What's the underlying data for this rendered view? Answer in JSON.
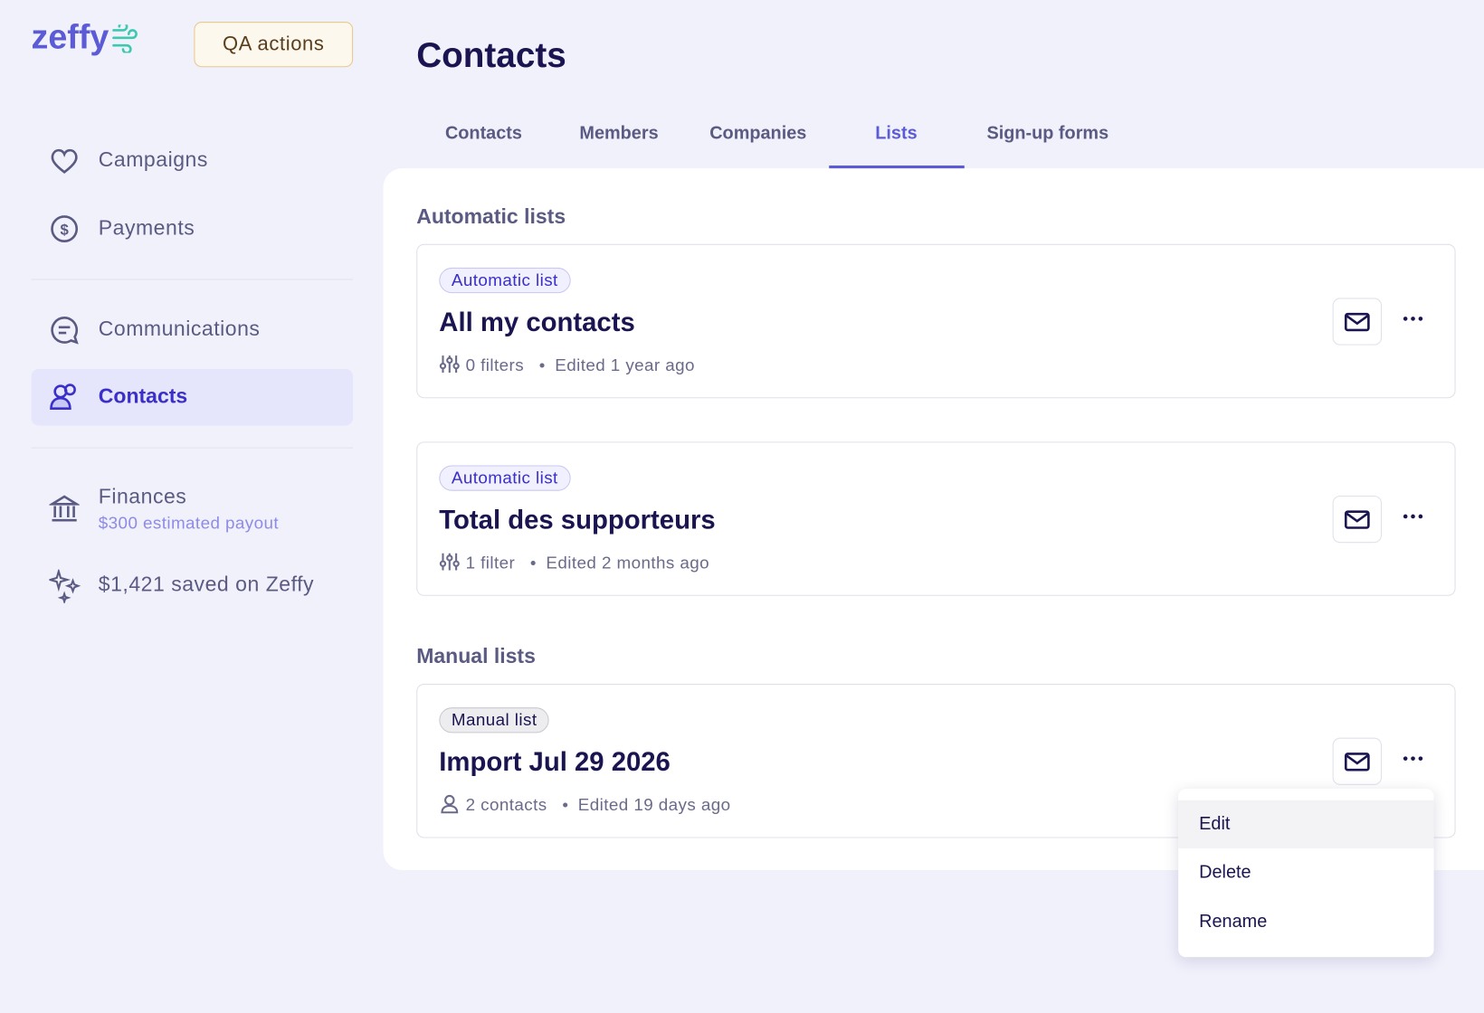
{
  "sidebar": {
    "logo": "zeffy",
    "qa_button": "QA actions",
    "nav": [
      {
        "label": "Campaigns"
      },
      {
        "label": "Payments"
      },
      {
        "label": "Communications"
      },
      {
        "label": "Contacts"
      },
      {
        "label": "Finances",
        "sublabel": "$300 estimated payout"
      },
      {
        "label": "$1,421 saved on Zeffy"
      }
    ]
  },
  "header": {
    "title": "Contacts"
  },
  "tabs": [
    "Contacts",
    "Members",
    "Companies",
    "Lists",
    "Sign-up forms"
  ],
  "sections": [
    {
      "title": "Automatic lists",
      "cards": [
        {
          "badge": "Automatic list",
          "name": "All my contacts",
          "count": "0 filters",
          "edited": "Edited 1 year ago"
        },
        {
          "badge": "Automatic list",
          "name": "Total des supporteurs",
          "count": "1 filter",
          "edited": "Edited 2 months ago"
        }
      ]
    },
    {
      "title": "Manual lists",
      "cards": [
        {
          "badge": "Manual list",
          "name": "Import Jul 29 2026",
          "count": "2 contacts",
          "edited": "Edited 19 days ago"
        }
      ]
    }
  ],
  "menu": [
    "Edit",
    "Delete",
    "Rename"
  ]
}
